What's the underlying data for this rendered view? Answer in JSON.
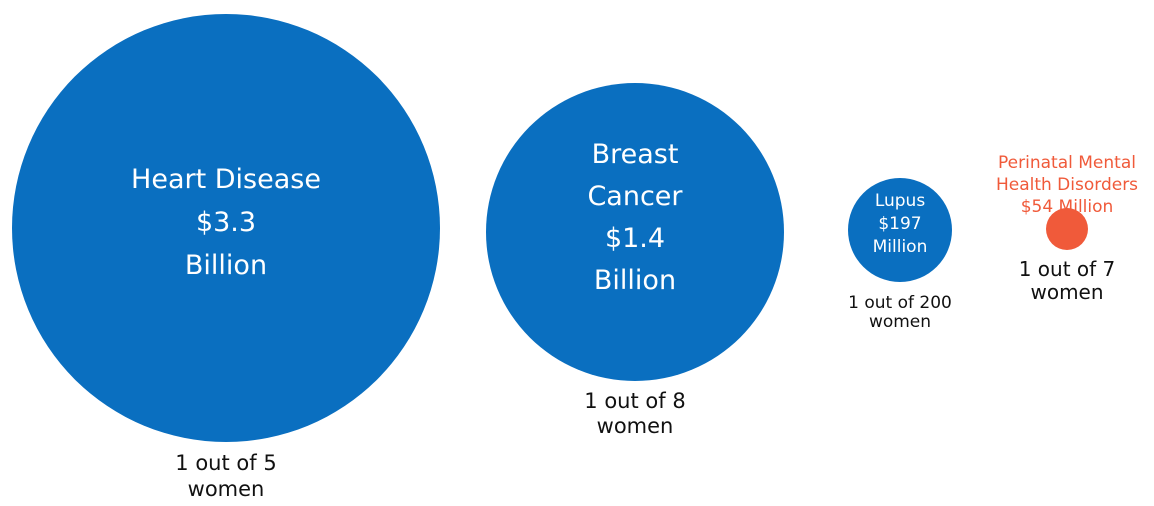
{
  "chart_data": {
    "type": "bubble",
    "title": "",
    "colors": {
      "blue": "#0a6fc0",
      "orange": "#f05a3a",
      "text_dark": "#111111",
      "text_light": "#ffffff"
    },
    "series": [
      {
        "category": "Heart Disease",
        "cost_label": "$3.3 Billion",
        "cost_usd_millions": 3300,
        "prevalence": "1 out of 5 women",
        "label_lines": [
          "Heart Disease",
          "$3.3",
          "Billion"
        ],
        "prevalence_lines": [
          "1 out of 5",
          "women"
        ],
        "color": "blue",
        "label_position": "inside"
      },
      {
        "category": "Breast Cancer",
        "cost_label": "$1.4 Billion",
        "cost_usd_millions": 1400,
        "prevalence": "1 out of 8 women",
        "label_lines": [
          "Breast",
          "Cancer",
          "$1.4",
          "Billion"
        ],
        "prevalence_lines": [
          "1 out of 8",
          "women"
        ],
        "color": "blue",
        "label_position": "inside"
      },
      {
        "category": "Lupus",
        "cost_label": "$197 Million",
        "cost_usd_millions": 197,
        "prevalence": "1 out of 200 women",
        "label_lines": [
          "Lupus",
          "$197",
          "Million"
        ],
        "prevalence_lines": [
          "1 out of 200",
          "women"
        ],
        "color": "blue",
        "label_position": "inside"
      },
      {
        "category": "Perinatal Mental Health Disorders",
        "cost_label": "$54 Million",
        "cost_usd_millions": 54,
        "prevalence": "1 out of 7 women",
        "label_lines": [
          "Perinatal Mental",
          "Health Disorders",
          "$54 Million"
        ],
        "prevalence_lines": [
          "1 out of 7",
          "women"
        ],
        "color": "orange",
        "label_position": "above"
      }
    ]
  }
}
